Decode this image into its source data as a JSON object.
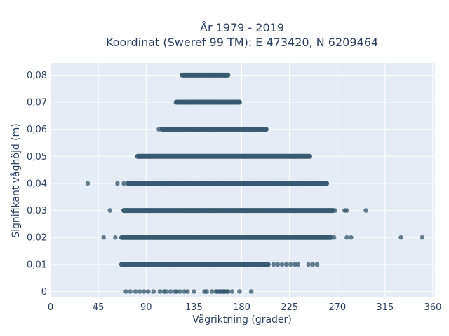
{
  "chart_data": {
    "type": "scatter",
    "title": [
      "År 1979 - 2019",
      "Koordinat (Sweref 99 TM): E 473420, N 6209464"
    ],
    "xlabel": "Vågriktning (grader)",
    "ylabel": "Signifikant våghöjd (m)",
    "xlim": [
      0,
      362
    ],
    "ylim": [
      -0.0022,
      0.0845
    ],
    "xticks": [
      0,
      45,
      90,
      135,
      180,
      225,
      270,
      315,
      360
    ],
    "xtick_labels": [
      "0",
      "45",
      "90",
      "135",
      "180",
      "225",
      "270",
      "315",
      "360"
    ],
    "yticks": [
      0,
      0.01,
      0.02,
      0.03,
      0.04,
      0.05,
      0.06,
      0.07,
      0.08
    ],
    "ytick_labels": [
      "0",
      "0,01",
      "0,02",
      "0,03",
      "0,04",
      "0,05",
      "0,06",
      "0,07",
      "0,08"
    ],
    "grid": true,
    "marker_color": "#34566c",
    "rows": [
      {
        "y": 0.08,
        "dense_range": [
          124,
          167
        ],
        "outliers": []
      },
      {
        "y": 0.07,
        "dense_range": [
          119,
          178
        ],
        "outliers": [
          118
        ]
      },
      {
        "y": 0.06,
        "dense_range": [
          105,
          203
        ],
        "outliers": [
          102
        ]
      },
      {
        "y": 0.05,
        "dense_range": [
          82,
          244
        ],
        "outliers": []
      },
      {
        "y": 0.04,
        "dense_range": [
          73,
          260
        ],
        "outliers": [
          35,
          63,
          69
        ]
      },
      {
        "y": 0.03,
        "dense_range": [
          69,
          266
        ],
        "outliers": [
          56,
          268,
          277,
          279,
          297
        ]
      },
      {
        "y": 0.02,
        "dense_range": [
          67,
          264
        ],
        "outliers": [
          50,
          61,
          267,
          279,
          283,
          330,
          350
        ]
      },
      {
        "y": 0.01,
        "dense_range": [
          67,
          205
        ],
        "outliers": [
          210,
          214,
          218,
          222,
          226,
          230,
          233,
          243,
          247,
          251
        ]
      },
      {
        "y": 0,
        "dense_range": null,
        "outliers": [
          71,
          75,
          80,
          84,
          88,
          92,
          97,
          103,
          107,
          109,
          113,
          117,
          119,
          122,
          126,
          129,
          135,
          145,
          147,
          152,
          156,
          157,
          159,
          160,
          162,
          163,
          164,
          166,
          167,
          171,
          178,
          189
        ]
      }
    ]
  }
}
